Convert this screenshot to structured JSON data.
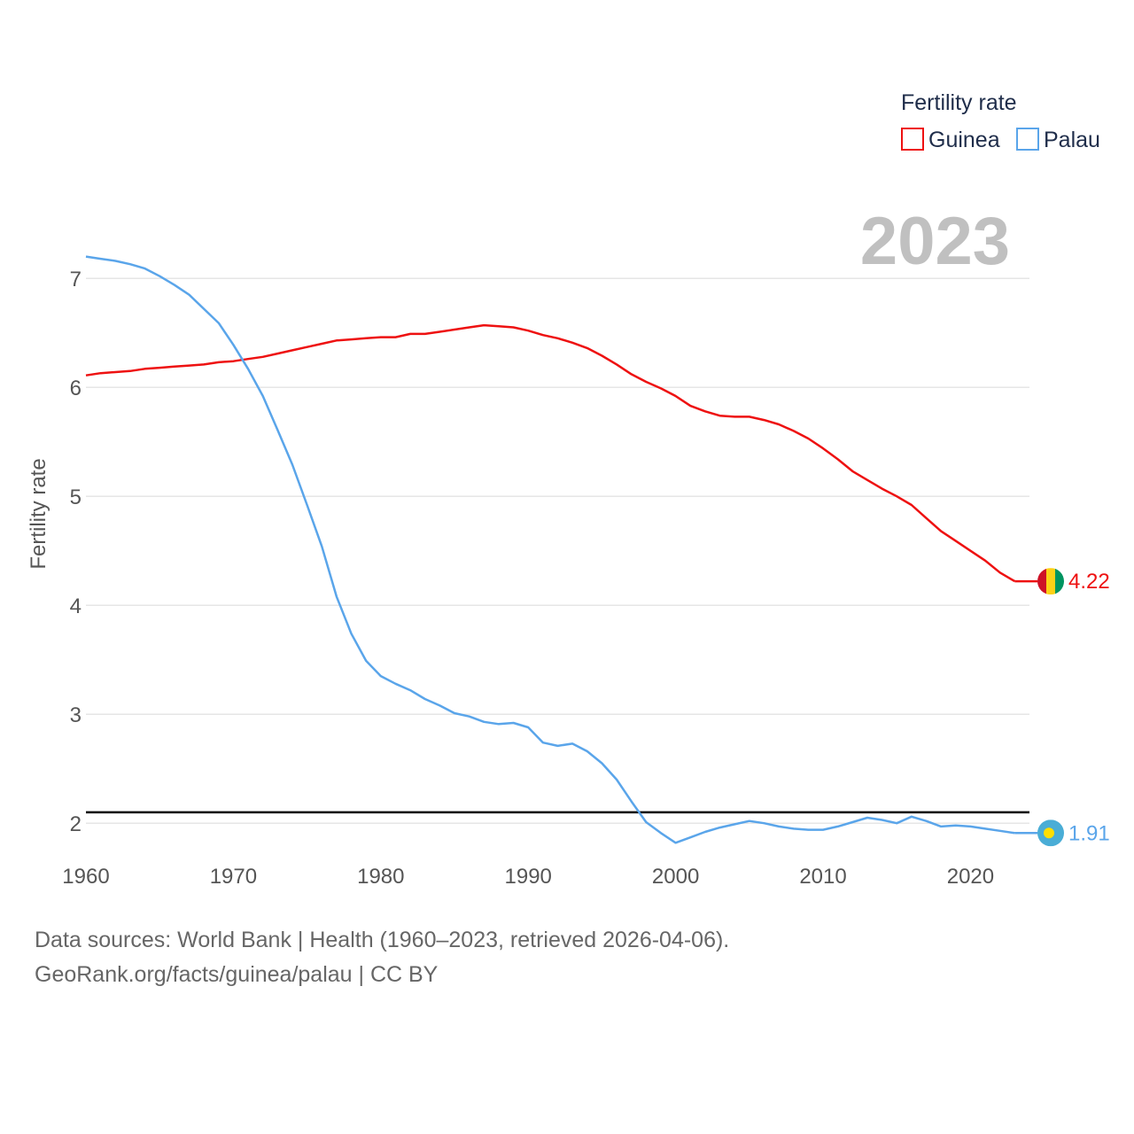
{
  "legend": {
    "title": "Fertility rate",
    "items": [
      {
        "label": "Guinea",
        "color": "#ee1111"
      },
      {
        "label": "Palau",
        "color": "#5aa5ea"
      }
    ]
  },
  "year_label": "2023",
  "footer": {
    "line1": "Data sources: World Bank | Health (1960–2023, retrieved 2026-04-06).",
    "line2": "GeoRank.org/facts/guinea/palau | CC BY"
  },
  "chart_data": {
    "type": "line",
    "title": "Fertility rate",
    "xlabel": "",
    "ylabel": "Fertility rate",
    "xlim": [
      1960,
      2024
    ],
    "ylim": [
      1.4,
      7.4
    ],
    "x_ticks": [
      1960,
      1970,
      1980,
      1990,
      2000,
      2010,
      2020
    ],
    "y_ticks": [
      2,
      3,
      4,
      5,
      6,
      7
    ],
    "grid": true,
    "reference_line": {
      "y": 2.1,
      "color": "#000000"
    },
    "x": [
      1960,
      1961,
      1962,
      1963,
      1964,
      1965,
      1966,
      1967,
      1968,
      1969,
      1970,
      1971,
      1972,
      1973,
      1974,
      1975,
      1976,
      1977,
      1978,
      1979,
      1980,
      1981,
      1982,
      1983,
      1984,
      1985,
      1986,
      1987,
      1988,
      1989,
      1990,
      1991,
      1992,
      1993,
      1994,
      1995,
      1996,
      1997,
      1998,
      1999,
      2000,
      2001,
      2002,
      2003,
      2004,
      2005,
      2006,
      2007,
      2008,
      2009,
      2010,
      2011,
      2012,
      2013,
      2014,
      2015,
      2016,
      2017,
      2018,
      2019,
      2020,
      2021,
      2022,
      2023
    ],
    "series": [
      {
        "name": "Guinea",
        "color": "#ee1111",
        "flag": [
          "#ce1126",
          "#fcd116",
          "#009460"
        ],
        "end_label": "4.22",
        "values": [
          6.11,
          6.13,
          6.14,
          6.15,
          6.17,
          6.18,
          6.19,
          6.2,
          6.21,
          6.23,
          6.24,
          6.26,
          6.28,
          6.31,
          6.34,
          6.37,
          6.4,
          6.43,
          6.44,
          6.45,
          6.46,
          6.46,
          6.49,
          6.49,
          6.51,
          6.53,
          6.55,
          6.57,
          6.56,
          6.55,
          6.52,
          6.48,
          6.45,
          6.41,
          6.36,
          6.29,
          6.21,
          6.12,
          6.05,
          5.99,
          5.92,
          5.83,
          5.78,
          5.74,
          5.73,
          5.73,
          5.7,
          5.66,
          5.6,
          5.53,
          5.44,
          5.34,
          5.23,
          5.15,
          5.07,
          5.0,
          4.92,
          4.8,
          4.68,
          4.59,
          4.5,
          4.41,
          4.3,
          4.22
        ]
      },
      {
        "name": "Palau",
        "color": "#5aa5ea",
        "flag": [
          "#4aadd6",
          "#ffde00"
        ],
        "end_label": "1.91",
        "values": [
          7.2,
          7.18,
          7.16,
          7.13,
          7.09,
          7.02,
          6.94,
          6.85,
          6.72,
          6.59,
          6.39,
          6.17,
          5.92,
          5.61,
          5.29,
          4.92,
          4.54,
          4.08,
          3.74,
          3.49,
          3.35,
          3.28,
          3.22,
          3.14,
          3.08,
          3.01,
          2.98,
          2.93,
          2.91,
          2.92,
          2.88,
          2.74,
          2.71,
          2.73,
          2.66,
          2.55,
          2.4,
          2.2,
          2.01,
          1.91,
          1.82,
          1.87,
          1.92,
          1.96,
          1.99,
          2.02,
          2.0,
          1.97,
          1.95,
          1.94,
          1.94,
          1.97,
          2.01,
          2.05,
          2.03,
          2.0,
          2.06,
          2.02,
          1.97,
          1.98,
          1.97,
          1.95,
          1.93,
          1.91
        ]
      }
    ]
  }
}
